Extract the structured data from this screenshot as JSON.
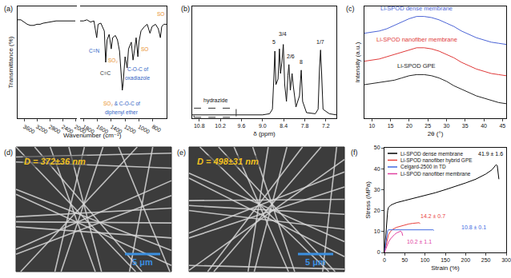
{
  "chart_data": [
    {
      "label": "(a)",
      "type": "line",
      "x_label": "Wavenumber (cm⁻¹)",
      "y_label": "Transmittance (%)",
      "tick_labels": "x",
      "x_segments": [
        {
          "xlim": [
            3800,
            1950
          ],
          "xticks": [
            3600,
            3200,
            2800,
            2400,
            2000
          ]
        },
        {
          "xlim": [
            1850,
            600
          ],
          "xticks": [
            1800,
            1600,
            1400,
            1200,
            1000,
            800
          ]
        }
      ],
      "ylim": [
        0,
        100
      ],
      "color": "#111111",
      "x": [
        3800,
        3700,
        3600,
        3500,
        3400,
        3300,
        3200,
        3100,
        3000,
        2800,
        2600,
        2400,
        2200,
        2000,
        1850,
        1800,
        1750,
        1700,
        1650,
        1610,
        1590,
        1550,
        1500,
        1480,
        1460,
        1430,
        1400,
        1380,
        1340,
        1310,
        1280,
        1250,
        1240,
        1230,
        1200,
        1170,
        1150,
        1110,
        1085,
        1070,
        1040,
        1015,
        1000,
        970,
        920,
        880,
        840,
        810,
        760,
        720,
        690,
        670,
        640,
        600
      ],
      "values": [
        88,
        88,
        86,
        84,
        83,
        83,
        84,
        84,
        85,
        86,
        87,
        87,
        87,
        87,
        87,
        87,
        88,
        86,
        87,
        72,
        84,
        85,
        78,
        50,
        70,
        75,
        62,
        72,
        74,
        70,
        60,
        35,
        25,
        30,
        55,
        45,
        62,
        68,
        52,
        58,
        72,
        55,
        68,
        78,
        82,
        84,
        76,
        82,
        84,
        80,
        72,
        82,
        84,
        84
      ],
      "annotations": [
        {
          "text": "C=N",
          "x": 1650,
          "y": 60,
          "color": "#2f5fc4"
        },
        {
          "text": "C=C",
          "x": 1480,
          "y": 40,
          "color": "#333333"
        },
        {
          "text": "SO₂",
          "x": 1380,
          "y": 52,
          "color": "#e8902a"
        },
        {
          "parts": [
            {
              "text": "SO₂",
              "color": "#e8902a"
            },
            {
              "text": " & C-O-C of",
              "color": "#2f5fc4"
            }
          ],
          "x": 1250,
          "y": 13
        },
        {
          "text": "diphenyl ether",
          "x": 1250,
          "y": 5,
          "color": "#2f5fc4"
        },
        {
          "text": "C-O-C of",
          "x": 1020,
          "y": 44,
          "color": "#2f5fc4"
        },
        {
          "text": "oxadiazole",
          "x": 1020,
          "y": 36,
          "color": "#2f5fc4"
        },
        {
          "text": "SO",
          "x": 920,
          "y": 62,
          "color": "#e8902a"
        },
        {
          "text": "SO",
          "x": 690,
          "y": 93,
          "color": "#e8902a"
        }
      ]
    },
    {
      "label": "(b)",
      "type": "line",
      "x_label": "δ (ppm)",
      "tick_labels": "x",
      "xlim": [
        11.0,
        6.9
      ],
      "xticks": [
        10.8,
        10.2,
        9.6,
        {
          "value": 9,
          "label": "9.0"
        },
        8.4,
        7.8,
        7.2
      ],
      "ylim": [
        0,
        100
      ],
      "color": "#111111",
      "x": [
        11.0,
        10.6,
        10.2,
        9.8,
        9.4,
        9.0,
        8.8,
        8.72,
        8.68,
        8.65,
        8.62,
        8.56,
        8.52,
        8.49,
        8.45,
        8.41,
        8.37,
        8.32,
        8.28,
        8.25,
        8.21,
        8.16,
        8.13,
        8.05,
        7.95,
        7.9,
        7.86,
        7.75,
        7.5,
        7.42,
        7.38,
        7.35,
        7.32,
        7.28,
        7.1,
        6.9
      ],
      "values": [
        3,
        3,
        3,
        3,
        3,
        3,
        4,
        8,
        35,
        60,
        30,
        35,
        62,
        40,
        50,
        66,
        30,
        15,
        38,
        48,
        25,
        40,
        30,
        10,
        20,
        43,
        15,
        5,
        4,
        8,
        45,
        61,
        40,
        8,
        4,
        3
      ],
      "annotations": [
        {
          "text": "5",
          "x": 8.68,
          "y": 68,
          "color": "#111111"
        },
        {
          "text": "3/4",
          "x": 8.42,
          "y": 75,
          "color": "#111111"
        },
        {
          "text": "2/6",
          "x": 8.2,
          "y": 55,
          "color": "#111111"
        },
        {
          "text": "8",
          "x": 7.9,
          "y": 50,
          "color": "#111111"
        },
        {
          "text": "1/7",
          "x": 7.35,
          "y": 68,
          "color": "#111111"
        }
      ],
      "region": {
        "text": "hydrazide",
        "x": [
          10.95,
          9.75
        ]
      }
    },
    {
      "label": "(c)",
      "type": "line",
      "x_label": "2θ (°)",
      "y_label": "Intensity (a.u.)",
      "tick_labels": "x",
      "xlim": [
        8,
        46
      ],
      "xticks": [
        10,
        15,
        20,
        25,
        30,
        35,
        40,
        45
      ],
      "ylim": [
        0,
        100
      ],
      "x": [
        8,
        10,
        12,
        14,
        16,
        18,
        20,
        22,
        24,
        26,
        28,
        30,
        32,
        34,
        36,
        38,
        40,
        42,
        44,
        46
      ],
      "series": [
        {
          "name": "Li-SPOD dense membrane",
          "color": "#4a63d6",
          "values": [
            76,
            77,
            78,
            80,
            83,
            86,
            89,
            91,
            91,
            90,
            88,
            85,
            82,
            78,
            75,
            72,
            70,
            68,
            67,
            66
          ]
        },
        {
          "name": "Li-SPOD nanofiber membrane",
          "color": "#e03a3a",
          "values": [
            51,
            52,
            53,
            55,
            57,
            59,
            61,
            63,
            63,
            62,
            60,
            57,
            54,
            50,
            47,
            44,
            42,
            40,
            39,
            38
          ]
        },
        {
          "name": "Li-SPOD GPE",
          "color": "#222222",
          "values": [
            30,
            31,
            32,
            33,
            34,
            36,
            38,
            39,
            39,
            38,
            36,
            33,
            29,
            26,
            23,
            20,
            18,
            16,
            14,
            13
          ]
        }
      ]
    },
    {
      "label": "(d)",
      "type": "image",
      "title": "D = 372±36 nm",
      "scale_bar": "5 μm"
    },
    {
      "label": "(e)",
      "type": "image",
      "title": "D = 498±31 nm",
      "scale_bar": "5 μm"
    },
    {
      "label": "(f)",
      "type": "line",
      "x_label": "Strain (%)",
      "y_label": "Stress (MPa)",
      "xlim": [
        0,
        300
      ],
      "xticks": [
        0,
        50,
        100,
        150,
        200,
        250,
        300
      ],
      "ylim": [
        0,
        50
      ],
      "yticks": [
        0,
        10,
        20,
        30,
        40,
        50
      ],
      "legend": "upper left",
      "series": [
        {
          "name": "Li-SPOD dense membrane",
          "color": "#000000",
          "x": [
            0,
            2,
            4,
            6,
            8,
            10,
            15,
            20,
            30,
            50,
            75,
            100,
            125,
            150,
            175,
            200,
            225,
            250,
            265,
            275,
            278,
            280,
            282
          ],
          "values": [
            0,
            6,
            12,
            17,
            20,
            21.5,
            22.5,
            23,
            23.8,
            24.8,
            26,
            27.2,
            28.5,
            30,
            31.5,
            33.2,
            35,
            37.5,
            39.5,
            41.9,
            41.5,
            38,
            35
          ]
        },
        {
          "name": "Li-SPOD nanofiber hybrid GPE",
          "color": "#e8403c",
          "x": [
            0,
            3,
            6,
            10,
            15,
            20,
            30,
            40,
            50,
            60,
            70,
            80,
            85,
            88
          ],
          "values": [
            0,
            3,
            6,
            8.5,
            10,
            11,
            12,
            12.6,
            13.2,
            13.6,
            13.9,
            14.1,
            14.2,
            13.8
          ]
        },
        {
          "name": "Celgard-2500 in TD",
          "color": "#4169e1",
          "x": [
            0,
            2,
            4,
            6,
            8,
            10,
            20,
            40,
            60,
            80,
            100,
            120,
            122
          ],
          "values": [
            0,
            3,
            6,
            9,
            10.5,
            10.8,
            10.8,
            10.8,
            10.8,
            10.8,
            10.8,
            10.8,
            10.5
          ]
        },
        {
          "name": "Li-SPOD nanofiber membrane",
          "color": "#e040a0",
          "x": [
            0,
            5,
            10,
            15,
            20,
            25,
            30,
            35,
            40,
            43,
            45
          ],
          "values": [
            0,
            2.5,
            5,
            6.5,
            7.7,
            8.6,
            9.3,
            9.8,
            10.2,
            9.5,
            8
          ]
        }
      ],
      "annotations": [
        {
          "text": "41.9 ± 1.6",
          "x": 262,
          "y": 47,
          "color": "#000000"
        },
        {
          "text": "14.2 ± 0.7",
          "x": 120,
          "y": 17.5,
          "color": "#e8403c"
        },
        {
          "text": "10.8 ± 0.1",
          "x": 220,
          "y": 12,
          "color": "#4169e1"
        },
        {
          "text": "10.2 ± 1.1",
          "x": 85,
          "y": 5,
          "color": "#e040a0"
        }
      ]
    }
  ]
}
